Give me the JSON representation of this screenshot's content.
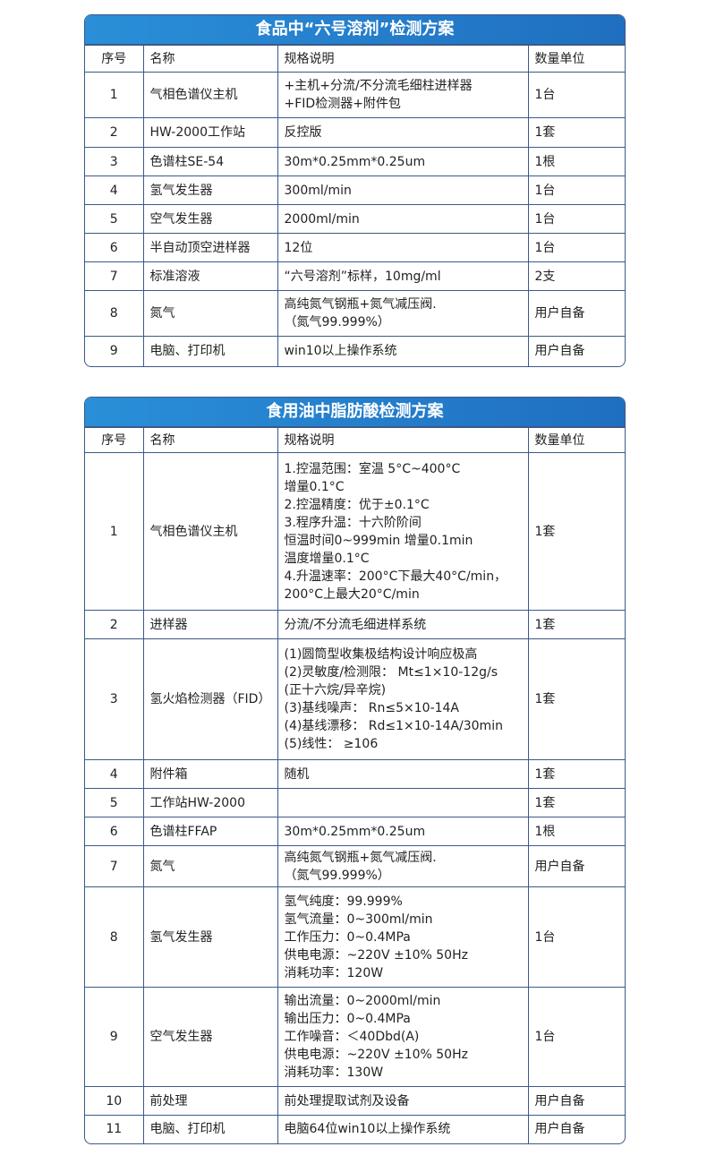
{
  "table1": {
    "title": "食品中“六号溶剂”检测方案",
    "headers": [
      "序号",
      "名称",
      "规格说明",
      "数量单位"
    ],
    "rows": [
      [
        "1",
        "气相色谱仪主机",
        "+主机+分流/不分流毛细柱进样器\n+FID检测器+附件包",
        "1台"
      ],
      [
        "2",
        "HW-2000工作站",
        "反控版",
        "1套"
      ],
      [
        "3",
        "色谱柱SE-54",
        "30m*0.25mm*0.25um",
        "1根"
      ],
      [
        "4",
        "氢气发生器",
        "300ml/min",
        "1台"
      ],
      [
        "5",
        "空气发生器",
        "2000ml/min",
        "1台"
      ],
      [
        "6",
        "半自动顶空进样器",
        "12位",
        "1台"
      ],
      [
        "7",
        "标准溶液",
        "“六号溶剂”标样，10mg/ml",
        "2支"
      ],
      [
        "8",
        "氮气",
        "高纯氮气钢瓶+氮气减压阀.\n（氮气99.999%）",
        "用户自备"
      ],
      [
        "9",
        "电脑、打印机",
        "win10以上操作系统",
        "用户自备"
      ]
    ]
  },
  "table2": {
    "title": "食用油中脂肪酸检测方案",
    "headers": [
      "序号",
      "名称",
      "规格说明",
      "数量单位"
    ],
    "rows": [
      [
        "1",
        "气相色谱仪主机",
        "1.控温范围：室温 5°C~400°C\n增量0.1°C\n2.控温精度：优于±0.1°C\n3.程序升温：十六阶阶间\n恒温时间0~999min 增量0.1min\n温度增量0.1°C\n4.升温速率：200°C下最大40°C/min，\n200°C上最大20°C/min",
        "1套"
      ],
      [
        "2",
        "进样器",
        "分流/不分流毛细进样系统",
        "1套"
      ],
      [
        "3",
        "氢火焰检测器（FID）",
        "(1)圆筒型收集极结构设计响应极高\n(2)灵敏度/检测限： Mt≤1×10-12g/s\n(正十六烷/异辛烷)\n(3)基线噪声： Rn≤5×10-14A\n(4)基线漂移： Rd≤1×10-14A/30min\n(5)线性： ≥106",
        "1套"
      ],
      [
        "4",
        "附件箱",
        "随机",
        "1套"
      ],
      [
        "5",
        "工作站HW-2000",
        "",
        "1套"
      ],
      [
        "6",
        "色谱柱FFAP",
        "30m*0.25mm*0.25um",
        "1根"
      ],
      [
        "7",
        "氮气",
        "高纯氮气钢瓶+氮气减压阀.\n（氮气99.999%）",
        "用户自备"
      ],
      [
        "8",
        "氢气发生器",
        "氢气纯度：99.999%\n氢气流量：0~300ml/min\n工作压力：0~0.4MPa\n供电电源：~220V ±10% 50Hz\n消耗功率：120W",
        "1台"
      ],
      [
        "9",
        "空气发生器",
        "输出流量：0~2000ml/min\n输出压力：0~0.4MPa\n工作噪音：＜40Dbd(A)\n供电电源：~220V ±10% 50Hz\n消耗功率：130W",
        "1台"
      ],
      [
        "10",
        "前处理",
        "前处理提取试剂及设备",
        "用户自备"
      ],
      [
        "11",
        "电脑、打印机",
        "电脑64位win10以上操作系统",
        "用户自备"
      ]
    ]
  }
}
